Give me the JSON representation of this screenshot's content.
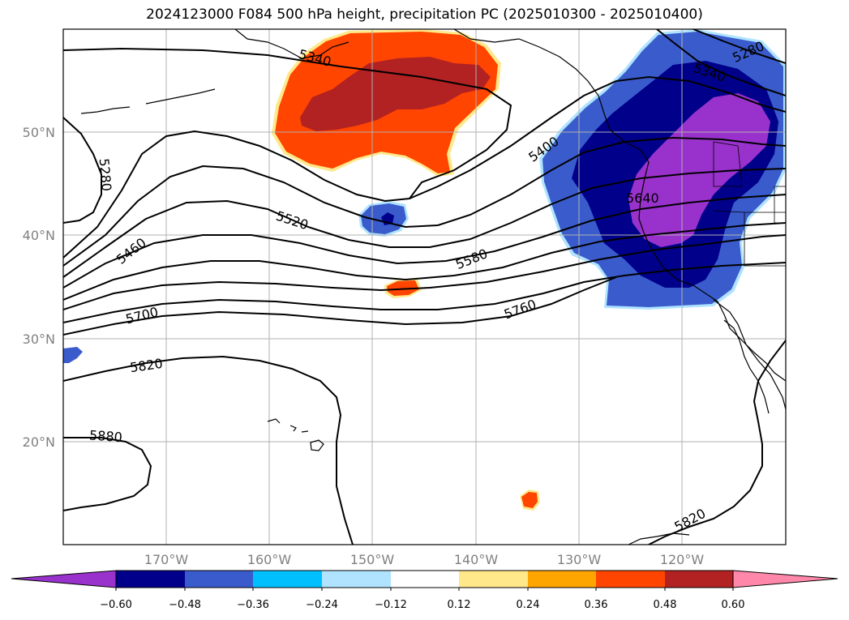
{
  "title": "2024123000 F084 500 hPa height, precipitation PC (2025010300 - 2025010400)",
  "map": {
    "lat_labels": [
      "50°N",
      "40°N",
      "30°N",
      "20°N"
    ],
    "lon_labels": [
      "170°W",
      "160°W",
      "150°W",
      "140°W",
      "130°W",
      "120°W"
    ],
    "contour_labels": [
      "5280",
      "5340",
      "5400",
      "5460",
      "5520",
      "5580",
      "5640",
      "5700",
      "5760",
      "5820",
      "5880",
      "5820",
      "5280",
      "5340"
    ],
    "colors": {
      "contour": "#000000",
      "grid": "#b0b0b0",
      "coast": "#000000"
    }
  },
  "colorbar": {
    "ticks": [
      "−0.60",
      "−0.48",
      "−0.36",
      "−0.24",
      "−0.12",
      "0.12",
      "0.24",
      "0.36",
      "0.48",
      "0.60"
    ],
    "colors": [
      "#9932cc",
      "#00008b",
      "#3a5bcc",
      "#00bfff",
      "#afe3ff",
      "#ffffff",
      "#ffe88a",
      "#ffa500",
      "#ff4500",
      "#b22222",
      "#ff88aa"
    ]
  }
}
